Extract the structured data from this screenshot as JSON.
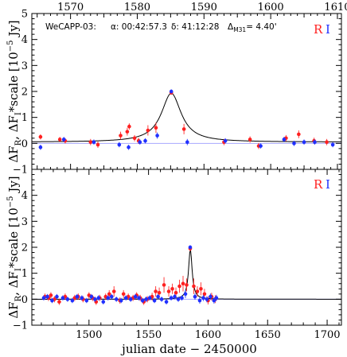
{
  "chart_data": [
    {
      "type": "scatter",
      "panel": "top",
      "title": "",
      "annotation": {
        "field": "WeCAPP-03:",
        "alpha": "α: 00:42:57.3",
        "delta": "δ: 41:12:28",
        "dist_prefix": "Δ",
        "dist_sub": "M31",
        "dist_value": "= 4.40'"
      },
      "top_axis_ticks": [
        "1570",
        "1580",
        "1590",
        "1600",
        "1610"
      ],
      "top_axis_range": [
        1564.2,
        1610.6
      ],
      "ylim": [
        -1,
        5
      ],
      "y_ticks": [
        "−1",
        "0",
        "1",
        "2",
        "3",
        "4",
        "5"
      ],
      "ylabel": "ΔF_R, ΔF_I*scale [10^−5 Jy]",
      "legend": {
        "position": "top-right",
        "entries": [
          {
            "label": "R",
            "color": "#ff2020"
          },
          {
            "label": "I",
            "color": "#2030ff"
          }
        ]
      },
      "series": [
        {
          "name": "R",
          "color": "#ff2020",
          "x": [
            1565.5,
            1568.4,
            1569.2,
            1573.0,
            1574.1,
            1577.5,
            1578.5,
            1578.8,
            1579.6,
            1580.2,
            1581.6,
            1582.8,
            1585.1,
            1587.0,
            1593.0,
            1596.9,
            1598.2,
            1602.3,
            1604.2,
            1606.5,
            1608.4
          ],
          "y": [
            0.25,
            0.15,
            0.1,
            0.05,
            -0.05,
            0.3,
            0.45,
            0.65,
            0.2,
            0.1,
            0.5,
            0.6,
            1.95,
            0.55,
            0.05,
            0.15,
            -0.1,
            0.2,
            0.35,
            0.1,
            0.05
          ],
          "err": [
            0.1,
            0.1,
            0.1,
            0.12,
            0.12,
            0.15,
            0.15,
            0.12,
            0.12,
            0.12,
            0.2,
            0.2,
            0.08,
            0.2,
            0.12,
            0.12,
            0.12,
            0.12,
            0.15,
            0.12,
            0.12
          ]
        },
        {
          "name": "I",
          "color": "#2030ff",
          "x": [
            1565.5,
            1569.0,
            1573.5,
            1577.3,
            1578.7,
            1580.4,
            1581.2,
            1583.0,
            1585.1,
            1587.5,
            1593.2,
            1598.5,
            1602.0,
            1603.5,
            1605.0,
            1606.6,
            1609.3
          ],
          "y": [
            -0.15,
            0.15,
            0.05,
            -0.05,
            -0.15,
            0.05,
            0.1,
            0.3,
            2.0,
            0.05,
            0.1,
            -0.1,
            0.15,
            0.0,
            0.05,
            0.05,
            -0.05
          ],
          "err": [
            0.1,
            0.1,
            0.1,
            0.1,
            0.1,
            0.1,
            0.1,
            0.12,
            0.08,
            0.12,
            0.1,
            0.1,
            0.1,
            0.1,
            0.1,
            0.1,
            0.1
          ]
        }
      ],
      "model": {
        "type": "lorentzian",
        "x0": 1585.1,
        "peak": 1.93,
        "width": 1.8,
        "baseline": 0.05
      }
    },
    {
      "type": "scatter",
      "panel": "bottom",
      "xlim": [
        1452,
        1712
      ],
      "ylim": [
        -1,
        5
      ],
      "x_ticks": [
        "1500",
        "1550",
        "1600",
        "1650",
        "1700"
      ],
      "y_ticks": [
        "−1",
        "0",
        "1",
        "2",
        "3",
        "4"
      ],
      "xlabel": "julian date − 2450000",
      "ylabel": "ΔF_R, ΔF_I*scale [10^−5 Jy]",
      "legend": {
        "position": "top-right",
        "entries": [
          {
            "label": "R",
            "color": "#ff2020"
          },
          {
            "label": "I",
            "color": "#2030ff"
          }
        ]
      },
      "series": [
        {
          "name": "R",
          "color": "#ff2020",
          "x": [
            1463,
            1466,
            1468,
            1471,
            1475,
            1480,
            1488,
            1491,
            1495,
            1500,
            1503,
            1506,
            1509,
            1514,
            1517,
            1521,
            1526,
            1529,
            1533,
            1537,
            1540,
            1543,
            1546,
            1549,
            1553,
            1556,
            1559,
            1563,
            1567,
            1570,
            1573,
            1576,
            1579,
            1582,
            1585,
            1588,
            1591,
            1594,
            1597,
            1600,
            1603,
            1606
          ],
          "y": [
            0.1,
            0.05,
            0.15,
            0.0,
            -0.1,
            0.1,
            0.05,
            0.1,
            0.0,
            0.15,
            0.05,
            -0.1,
            0.05,
            0.1,
            0.2,
            0.3,
            -0.05,
            0.2,
            0.1,
            0.05,
            0.15,
            0.05,
            -0.1,
            0.0,
            0.1,
            0.3,
            0.25,
            0.55,
            0.3,
            0.4,
            0.25,
            0.5,
            0.6,
            0.55,
            1.95,
            0.5,
            0.3,
            0.4,
            0.2,
            -0.05,
            0.1,
            0.0
          ],
          "err": [
            0.12,
            0.12,
            0.12,
            0.12,
            0.12,
            0.12,
            0.12,
            0.12,
            0.12,
            0.12,
            0.12,
            0.12,
            0.12,
            0.12,
            0.15,
            0.2,
            0.12,
            0.15,
            0.12,
            0.12,
            0.12,
            0.12,
            0.12,
            0.12,
            0.15,
            0.2,
            0.2,
            0.3,
            0.2,
            0.2,
            0.2,
            0.25,
            0.3,
            0.25,
            0.1,
            0.3,
            0.2,
            0.25,
            0.2,
            0.15,
            0.15,
            0.15
          ]
        },
        {
          "name": "I",
          "color": "#2030ff",
          "x": [
            1462,
            1465,
            1469,
            1473,
            1478,
            1482,
            1486,
            1490,
            1494,
            1498,
            1502,
            1505,
            1508,
            1512,
            1516,
            1519,
            1523,
            1527,
            1531,
            1535,
            1539,
            1542,
            1545,
            1548,
            1551,
            1555,
            1558,
            1561,
            1565,
            1569,
            1572,
            1575,
            1578,
            1581,
            1585,
            1589,
            1593,
            1596,
            1599,
            1602,
            1605,
            1607
          ],
          "y": [
            0.05,
            0.1,
            -0.05,
            0.1,
            0.05,
            0.0,
            -0.05,
            0.1,
            0.05,
            -0.05,
            0.1,
            0.0,
            0.05,
            -0.1,
            0.05,
            0.1,
            0.0,
            -0.05,
            0.05,
            0.0,
            0.1,
            0.05,
            -0.05,
            0.0,
            0.05,
            -0.05,
            0.1,
            0.0,
            -0.1,
            0.05,
            0.1,
            0.0,
            0.05,
            0.2,
            2.0,
            0.1,
            -0.05,
            0.05,
            0.0,
            0.1,
            -0.05,
            0.05
          ],
          "err": [
            0.1,
            0.1,
            0.1,
            0.1,
            0.1,
            0.1,
            0.1,
            0.1,
            0.1,
            0.1,
            0.1,
            0.1,
            0.1,
            0.1,
            0.1,
            0.1,
            0.1,
            0.1,
            0.1,
            0.1,
            0.1,
            0.1,
            0.1,
            0.1,
            0.1,
            0.1,
            0.1,
            0.1,
            0.1,
            0.1,
            0.1,
            0.1,
            0.1,
            0.15,
            0.08,
            0.12,
            0.12,
            0.12,
            0.12,
            0.12,
            0.12,
            0.12
          ]
        }
      ],
      "model": {
        "type": "lorentzian",
        "x0": 1585.1,
        "peak": 1.93,
        "width": 1.8,
        "baseline": 0.0
      }
    }
  ]
}
